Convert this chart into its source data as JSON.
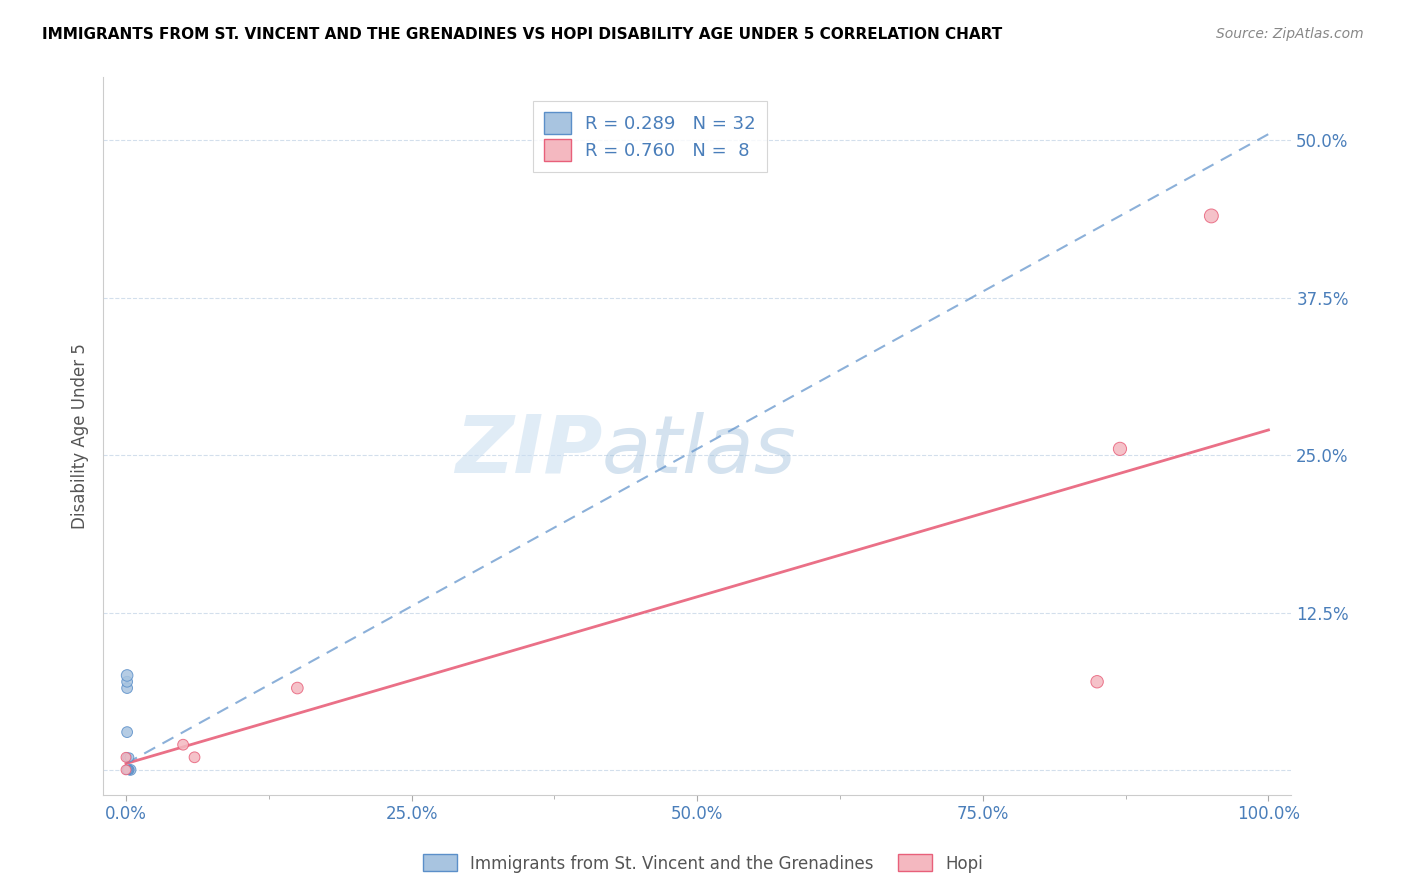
{
  "title": "IMMIGRANTS FROM ST. VINCENT AND THE GRENADINES VS HOPI DISABILITY AGE UNDER 5 CORRELATION CHART",
  "source": "Source: ZipAtlas.com",
  "ylabel": "Disability Age Under 5",
  "xlim": [
    -0.02,
    1.02
  ],
  "ylim": [
    -0.02,
    0.55
  ],
  "xticks": [
    0.0,
    0.25,
    0.5,
    0.75,
    1.0
  ],
  "xtick_labels": [
    "0.0%",
    "25.0%",
    "50.0%",
    "75.0%",
    "100.0%"
  ],
  "yticks": [
    0.0,
    0.125,
    0.25,
    0.375,
    0.5
  ],
  "ytick_labels": [
    "",
    "12.5%",
    "25.0%",
    "37.5%",
    "50.0%"
  ],
  "blue_color": "#a8c4e0",
  "pink_color": "#f4b8c0",
  "blue_line_color": "#5b8fc9",
  "pink_line_color": "#e8607a",
  "R_blue": 0.289,
  "N_blue": 32,
  "R_pink": 0.76,
  "N_pink": 8,
  "watermark_zip": "ZIP",
  "watermark_atlas": "atlas",
  "legend_label_blue": "Immigrants from St. Vincent and the Grenadines",
  "legend_label_pink": "Hopi",
  "blue_points_x": [
    0.001,
    0.002,
    0.001,
    0.003,
    0.004,
    0.002,
    0.001,
    0.001,
    0.002,
    0.001,
    0.001,
    0.002,
    0.001,
    0.003,
    0.001,
    0.002,
    0.002,
    0.001,
    0.001,
    0.003,
    0.002,
    0.001,
    0.001,
    0.002,
    0.003,
    0.002,
    0.001,
    0.001,
    0.001,
    0.002,
    0.001,
    0.001
  ],
  "blue_points_y": [
    0.0,
    0.0,
    0.01,
    0.0,
    0.0,
    0.0,
    0.0,
    0.03,
    0.0,
    0.0,
    0.01,
    0.0,
    0.0,
    0.01,
    0.0,
    0.0,
    0.0,
    0.0,
    0.0,
    0.0,
    0.0,
    0.065,
    0.0,
    0.0,
    0.0,
    0.0,
    0.07,
    0.0,
    0.0,
    0.0,
    0.0,
    0.075
  ],
  "blue_sizes": [
    40,
    40,
    40,
    50,
    60,
    40,
    40,
    60,
    40,
    40,
    40,
    40,
    40,
    40,
    40,
    40,
    40,
    40,
    40,
    40,
    40,
    60,
    40,
    40,
    40,
    40,
    60,
    40,
    40,
    40,
    40,
    70
  ],
  "pink_points_x": [
    0.06,
    0.0,
    0.15,
    0.85,
    0.87,
    0.95,
    0.0,
    0.05
  ],
  "pink_points_y": [
    0.01,
    0.0,
    0.065,
    0.07,
    0.255,
    0.44,
    0.01,
    0.02
  ],
  "pink_sizes": [
    60,
    50,
    70,
    80,
    90,
    100,
    50,
    60
  ],
  "blue_reg_intercept": 0.005,
  "blue_reg_slope": 0.5,
  "pink_reg_intercept": 0.005,
  "pink_reg_slope": 0.265
}
